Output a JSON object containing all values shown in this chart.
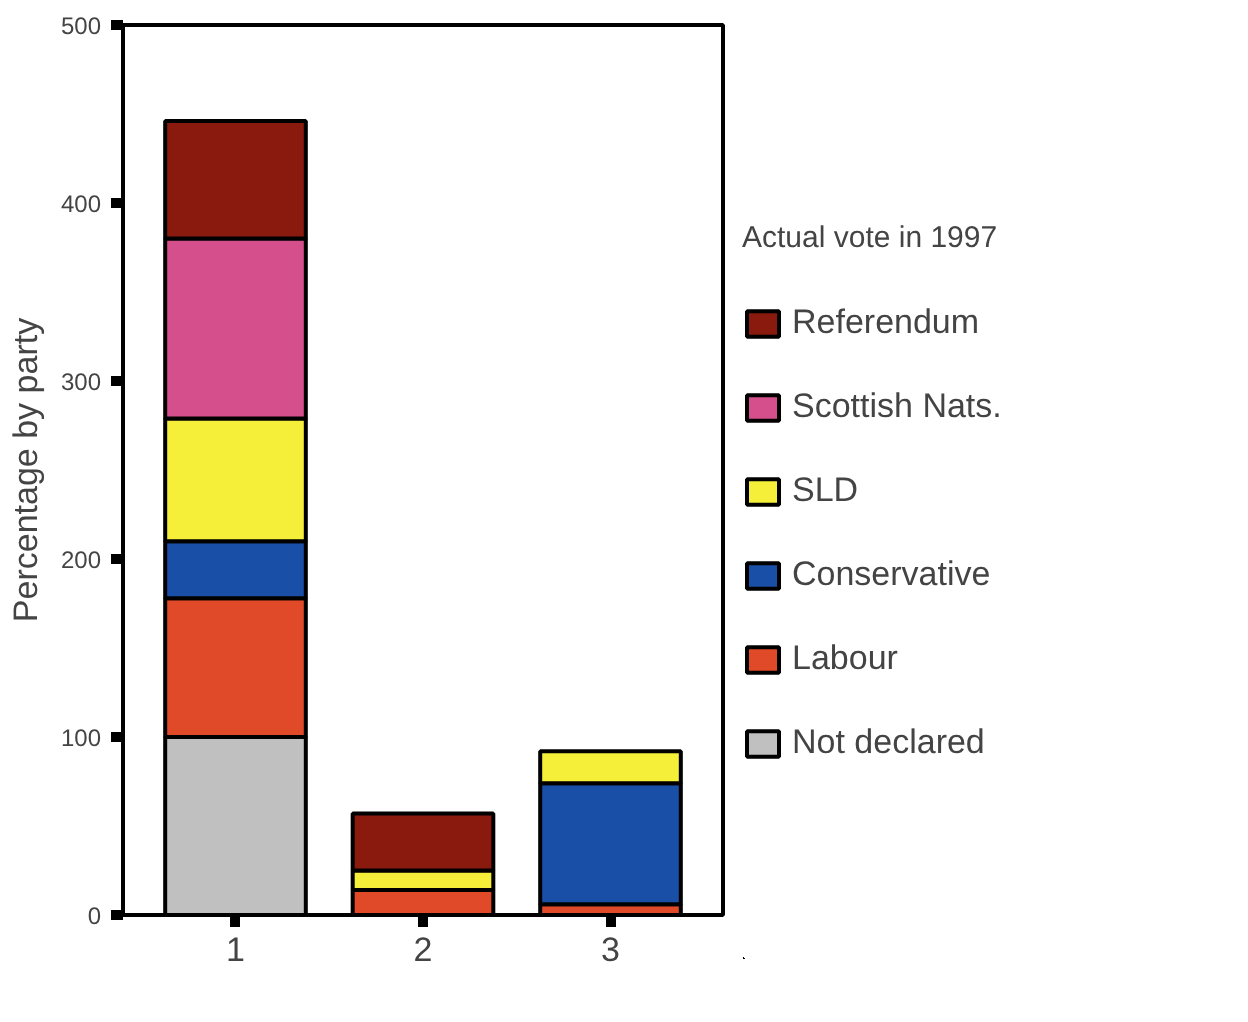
{
  "chart_data": {
    "type": "bar",
    "stacked": true,
    "categories": [
      "1",
      "2",
      "3"
    ],
    "ylabel": "Percentage by party",
    "legend_title": "Actual vote in 1997",
    "legend": "right",
    "grid": false,
    "ylim": [
      0,
      500
    ],
    "yticks": [
      0,
      100,
      200,
      300,
      400,
      500
    ],
    "series": [
      {
        "name": "Not declared",
        "color": "#c0c0c0",
        "values": [
          100,
          0,
          0
        ]
      },
      {
        "name": "Labour",
        "color": "#e04a28",
        "values": [
          78,
          14,
          6
        ]
      },
      {
        "name": "Conservative",
        "color": "#1a4fa8",
        "values": [
          32,
          0,
          68
        ]
      },
      {
        "name": "SLD",
        "color": "#f5ef3a",
        "values": [
          69,
          11,
          18
        ]
      },
      {
        "name": "Scottish Nats.",
        "color": "#d44f8c",
        "values": [
          101,
          0,
          0
        ]
      },
      {
        "name": "Referendum",
        "color": "#8b1a0e",
        "values": [
          66,
          32,
          0
        ]
      }
    ]
  }
}
